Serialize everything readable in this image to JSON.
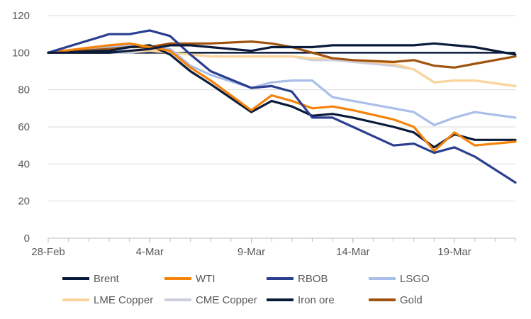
{
  "chart_data": {
    "type": "line",
    "title": "",
    "xlabel": "",
    "ylabel": "",
    "ylim": [
      0,
      120
    ],
    "yticks": [
      0,
      20,
      40,
      60,
      80,
      100,
      120
    ],
    "xlim": [
      0,
      23
    ],
    "xticks": [
      {
        "x": 0,
        "label": "28-Feb"
      },
      {
        "x": 5,
        "label": "4-Mar"
      },
      {
        "x": 10,
        "label": "9-Mar"
      },
      {
        "x": 15,
        "label": "14-Mar"
      },
      {
        "x": 20,
        "label": "19-Mar"
      }
    ],
    "grid": "horizontal",
    "legend_position": "bottom",
    "x": [
      0,
      3,
      4,
      5,
      6,
      7,
      8,
      10,
      11,
      12,
      13,
      14,
      15,
      17,
      18,
      19,
      20,
      21,
      23
    ],
    "series": [
      {
        "name": "Brent",
        "color": "#0a1a3a",
        "values": [
          100,
          101,
          103,
          104,
          99,
          90,
          83,
          68,
          74,
          71,
          66,
          67,
          65,
          60,
          57,
          49,
          56,
          53,
          53
        ]
      },
      {
        "name": "WTI",
        "color": "#f5830a",
        "values": [
          100,
          104,
          105,
          103,
          101,
          92,
          85,
          69,
          77,
          74,
          70,
          71,
          69,
          64,
          60,
          47,
          57,
          50,
          52
        ]
      },
      {
        "name": "RBOB",
        "color": "#2a3f8f",
        "values": [
          100,
          110,
          110,
          112,
          109,
          99,
          90,
          81,
          82,
          79,
          65,
          65,
          60,
          50,
          51,
          46,
          49,
          44,
          30
        ]
      },
      {
        "name": "LSGO",
        "color": "#a9bfe8",
        "values": [
          100,
          103,
          104,
          103,
          102,
          93,
          88,
          81,
          84,
          85,
          85,
          76,
          74,
          70,
          68,
          61,
          65,
          68,
          65
        ]
      },
      {
        "name": "LME Copper",
        "color": "#fbd49a",
        "values": [
          100,
          100,
          101,
          101,
          100,
          99,
          98,
          98,
          98,
          98,
          97,
          97,
          96,
          94,
          91,
          84,
          85,
          85,
          82
        ]
      },
      {
        "name": "CME Copper",
        "color": "#cccedd",
        "values": [
          100,
          100,
          100,
          101,
          100,
          99,
          98,
          98,
          98,
          98,
          96,
          96,
          95,
          93,
          91,
          84,
          85,
          85,
          82
        ]
      },
      {
        "name": "Iron ore",
        "color": "#0a1a3a",
        "values": [
          100,
          100,
          101,
          102,
          104,
          104,
          103,
          101,
          103,
          103,
          103,
          104,
          104,
          104,
          104,
          105,
          104,
          103,
          99
        ]
      },
      {
        "name": "Gold",
        "color": "#a0530f",
        "values": [
          100,
          102,
          103,
          103,
          105,
          105,
          105,
          106,
          105,
          103,
          100,
          97,
          96,
          95,
          96,
          93,
          92,
          94,
          98
        ]
      }
    ],
    "reference_line": {
      "y": 100,
      "color": "#0a1a3a"
    }
  }
}
